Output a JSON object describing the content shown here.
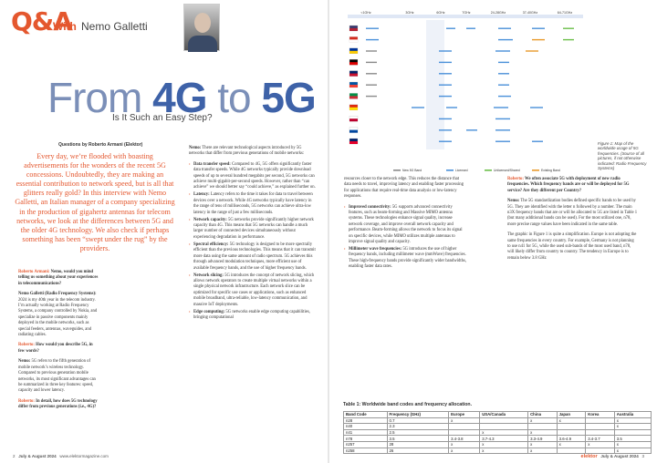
{
  "header": {
    "logo": "Q&A",
    "with_label": "With",
    "author": "Nemo Galletti"
  },
  "title": {
    "prefix": "From ",
    "a": "4G",
    "mid": " to ",
    "b": "5G"
  },
  "subtitle": "Is It Such an Easy Step?",
  "questions_by": "Questions by Roberto Armani (Elektor)",
  "intro": "Every day, we’re flooded with boasting advertisements for the wonders of the recent 5G concessions. Undoubtedly, they are making an essential contribution to network speed, but is all that glitters really gold? In this interview with Nemo Galletti, an Italian manager of a company specializing in the production of gigahertz antennas for telecom networks, we look at the differences between 5G and the older 4G technology. We also check if perhaps something has been “swept under the rug” by the providers.",
  "col1": {
    "q1_name": "Roberto Armani:",
    "q1": " Nemo, would you mind telling us something about your experiences in telecommunications?",
    "a1_name": "Nemo Galletti (Radio Frequency Systems):",
    "a1": " 2024 is my 40th year in the telecom industry. I’m actually working at Radio Frequency Systems, a company controlled by Nokia, and specialize in passive components mainly deployed in the mobile networks, such as special feeders, antennas, waveguides, and radiating cables.",
    "q2_name": "Roberto:",
    "q2": " How would you describe 5G, in few words?",
    "a2_name": "Nemo:",
    "a2": " 5G refers to the fifth generation of mobile network’s wireless technology. Compared to previous generation mobile networks, its most significant advantages can be summarized in three key features: speed, capacity and lower latency.",
    "q3_name": "Roberto:",
    "q3": " In detail, how does 5G technology differ from previous generations (i.e., 4G)?"
  },
  "col2": {
    "intro_name": "Nemo:",
    "intro": " There are relevant technological aspects introduced by 5G networks that differ from previous generations of mobile networks:",
    "items": [
      {
        "t": "Data transfer speed:",
        "d": " Compared to 4G, 5G offers significantly faster data transfer speeds. While 4G networks typically provide download speeds of up to several hundred megabits per second, 5G networks can achieve multi-gigabit-per-second speeds. However, rather than “can achieve” we should better say “could achieve,” as explained further on."
      },
      {
        "t": "Latency:",
        "d": " Latency refers to the time it takes for data to travel between devices over a network. While 4G networks typically have latency in the range of tens of milliseconds, 5G networks can achieve ultra-low latency in the range of just a few milliseconds."
      },
      {
        "t": "Network capacity:",
        "d": " 5G networks provide significantly higher network capacity than 4G. This means that 5G networks can handle a much larger number of connected devices simultaneously without experiencing degradation in performance."
      },
      {
        "t": "Spectral efficiency:",
        "d": " 5G technology is designed to be more spectrally efficient than the previous technologies. This means that it can transmit more data using the same amount of radio spectrum. 5G achieves this through advanced modulation techniques, more efficient use of available frequency bands, and the use of higher frequency bands."
      },
      {
        "t": "Network slicing:",
        "d": " 5G introduces the concept of network slicing, which allows network operators to create multiple virtual networks within a single physical network infrastructure. Each network slice can be optimized for specific use cases or applications, such as enhanced mobile broadband, ultra-reliable, low-latency communication, and massive IoT deployments."
      },
      {
        "t": "Edge computing:",
        "d": " 5G networks enable edge computing capabilities, bringing computational"
      }
    ]
  },
  "col3": {
    "lead": "resources closer to the network edge. This reduces the distance that data needs to travel, improving latency and enabling faster processing for applications that require real-time data analysis or low-latency responses.",
    "items": [
      {
        "t": "Improved connectivity:",
        "d": " 5G supports advanced connectivity features, such as beam-forming and Massive MIMO antenna systems. These technologies enhance signal quality, increase network coverage, and improve overall network capacity and performance. Beam-forming allows the network to focus its signal on specific devices, while MIMO utilizes multiple antennas to improve signal quality and capacity."
      },
      {
        "t": "Millimeter wave frequencies:",
        "d": " 5G introduces the use of higher frequency bands, including millimeter wave (mmWave) frequencies. These high-frequency bands provide significantly wider bandwidths, enabling faster data rates."
      }
    ]
  },
  "col4": {
    "q_name": "Roberto:",
    "q": " We often associate 5G with deployment of new radio frequencies. Which frequency bands are or will be deployed for 5G service? Are they different per Country?",
    "a_name": "Nemo:",
    "a": " The 5G standardization bodies defined specific bands to be used by 5G. They are identified with the letter n followed by a number. The main n3X frequency bands that are or will be allocated to 5G are listed in Table 1 (but many additional bands can be used). For the most utilized one, n78, more precise range values have been indicated in the same table.",
    "p2": "The graphic in Figure 1 is quite a simplification. Europe is not adopting the same frequencies in every country. For example, Germany is not planning to use n41 for 5G, while the used sub-bands of the most used band, n78, will likely differ from country to country. The tendency in Europe is to remain below 3.8 GHz"
  },
  "figure": {
    "scale_labels": [
      "<1GHz",
      "3GHz",
      "6GHz",
      "7GHz",
      "24-28GHz",
      "37-40GHz",
      "64-71GHz"
    ],
    "legend": [
      "New 5G Band",
      "Licensed",
      "Unlicensed/Shared",
      "Existing Band"
    ],
    "colors": {
      "licensed": "#4a90d9",
      "unlicensed": "#6cbf4a",
      "existing": "#e89a2c",
      "new": "#8a8a8a"
    }
  },
  "caption": "Figure 1: Map of the worldwide usage of 5G frequencies. (Source of all pictures, if not otherwise indicated: Radio Frequency Systems)",
  "table": {
    "caption": "Table 1: Worldwide band codes and frequency allocation.",
    "headers": [
      "Band Code",
      "Frequency (GHz)",
      "Europe",
      "USA/Canada",
      "China",
      "Japan",
      "Korea",
      "Australia"
    ],
    "rows": [
      [
        "n28",
        "0.7",
        "x",
        "",
        "x",
        "x",
        "",
        "x"
      ],
      [
        "n40",
        "2.3",
        "",
        "",
        "",
        "",
        "",
        "x"
      ],
      [
        "n41",
        "2.5",
        "",
        "x",
        "x",
        "",
        "",
        ""
      ],
      [
        "n78",
        "3.5",
        "3.4-3.8",
        "3.7-4.3",
        "3.3-4.9",
        "3.6-4.9",
        "3.4-3.7",
        "3.5"
      ],
      [
        "n257",
        "28",
        "x",
        "x",
        "x",
        "x",
        "x",
        "x"
      ],
      [
        "n258",
        "26",
        "x",
        "x",
        "x",
        "",
        "",
        "x"
      ]
    ]
  },
  "footer": {
    "left_page": "2",
    "left_issue": "July & August 2024",
    "left_url": "www.elektormagazine.com",
    "right_brand": "elektor",
    "right_issue": "July & August 2024",
    "right_page": "3"
  }
}
